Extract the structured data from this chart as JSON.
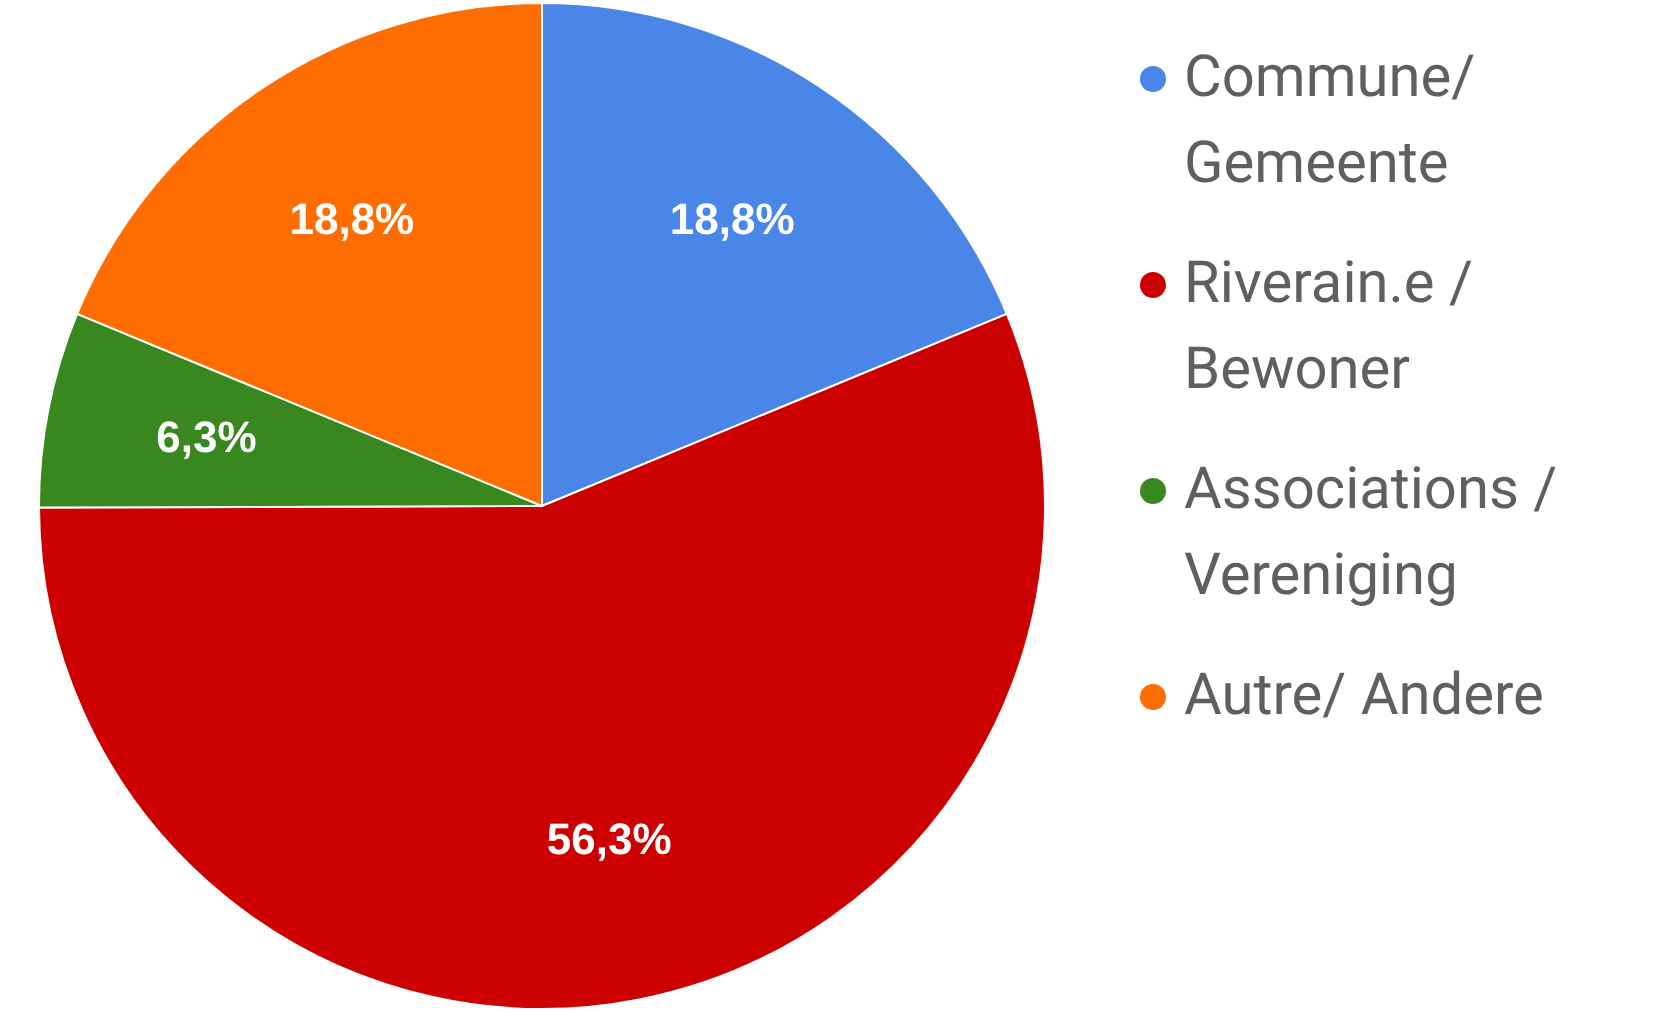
{
  "chart_data": {
    "type": "pie",
    "categories": [
      "Commune/ Gemeente",
      "Riverain.e / Bewoner",
      "Associations / Vereniging",
      "Autre/ Andere"
    ],
    "values": [
      18.8,
      56.3,
      6.3,
      18.8
    ],
    "colors": [
      "#4a86e8",
      "#cc0000",
      "#38871f",
      "#ff6d00"
    ],
    "value_labels": [
      "18,8%",
      "56,3%",
      "6,3%",
      "18,8%"
    ],
    "legend": "right"
  }
}
